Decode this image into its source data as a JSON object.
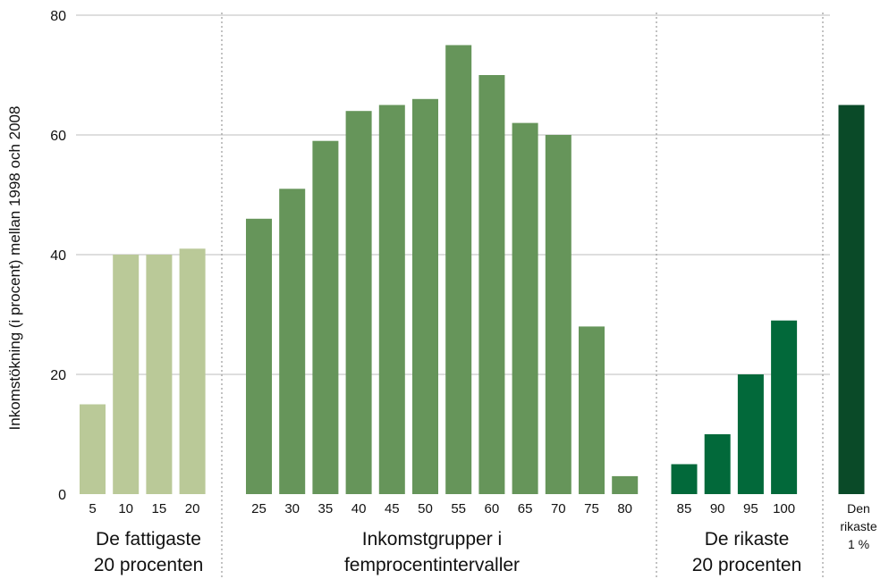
{
  "chart_data": {
    "type": "bar",
    "ylabel": "Inkomstökning (i procent) mellan 1998 och 2008",
    "ylim": [
      0,
      80
    ],
    "yticks": [
      0,
      20,
      40,
      60,
      80
    ],
    "grid": true,
    "groups": [
      {
        "label_lines": [
          "De fattigaste",
          "20 procenten"
        ],
        "color": "#bac998",
        "categories": [
          "5",
          "10",
          "15",
          "20"
        ],
        "values": [
          15,
          40,
          40,
          41
        ]
      },
      {
        "label_lines": [
          "Inkomstgrupper i",
          "femprocentintervaller"
        ],
        "color": "#66955a",
        "categories": [
          "25",
          "30",
          "35",
          "40",
          "45",
          "50",
          "55",
          "60",
          "65",
          "70",
          "75",
          "80"
        ],
        "values": [
          46,
          51,
          59,
          64,
          65,
          66,
          75,
          70,
          62,
          60,
          28,
          3
        ]
      },
      {
        "label_lines": [
          "De rikaste",
          "20 procenten"
        ],
        "color": "#02693a",
        "categories": [
          "85",
          "90",
          "95",
          "100"
        ],
        "values": [
          5,
          10,
          20,
          29
        ]
      },
      {
        "label_lines": [
          "Den",
          "rikaste",
          "1 %"
        ],
        "color": "#0a4a28",
        "categories": [
          ""
        ],
        "values": [
          65
        ]
      }
    ]
  },
  "colors": {
    "gridline": "#bdbdbd",
    "separator": "#9a9a9a",
    "text": "#111111"
  }
}
